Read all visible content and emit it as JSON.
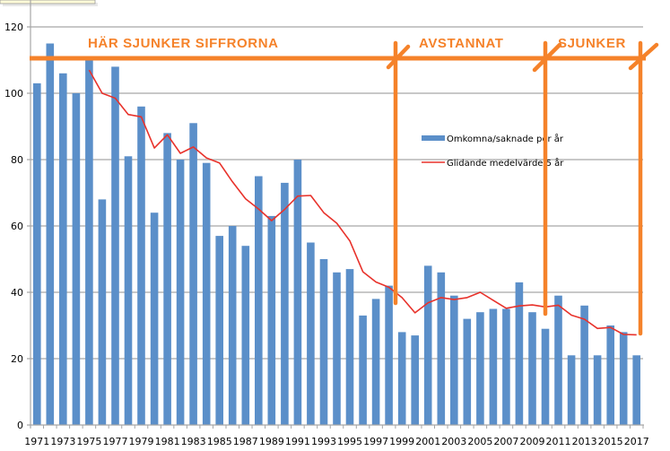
{
  "chart_data": {
    "type": "bar",
    "title": "",
    "xlabel": "",
    "ylabel": "",
    "ylim": [
      0,
      120
    ],
    "yticks": [
      0,
      20,
      40,
      60,
      80,
      100,
      120
    ],
    "grid": true,
    "legend_position": "inside-right",
    "categories": [
      1971,
      1972,
      1973,
      1974,
      1975,
      1976,
      1977,
      1978,
      1979,
      1980,
      1981,
      1982,
      1983,
      1984,
      1985,
      1986,
      1987,
      1988,
      1989,
      1990,
      1991,
      1992,
      1993,
      1994,
      1995,
      1996,
      1997,
      1998,
      1999,
      2000,
      2001,
      2002,
      2003,
      2004,
      2005,
      2006,
      2007,
      2008,
      2009,
      2010,
      2011,
      2012,
      2013,
      2014,
      2015,
      2016,
      2017
    ],
    "xtick_labels": [
      "1971",
      "1973",
      "1975",
      "1977",
      "1979",
      "1981",
      "1983",
      "1985",
      "1987",
      "1989",
      "1991",
      "1993",
      "1995",
      "1997",
      "1999",
      "2001",
      "2003",
      "2005",
      "2007",
      "2009",
      "2011",
      "2013",
      "2015",
      "2017"
    ],
    "series": [
      {
        "name": "Omkomna/saknade per år",
        "type": "bar",
        "color": "#5b8fc9",
        "values": [
          103,
          115,
          106,
          100,
          110,
          68,
          108,
          81,
          96,
          64,
          88,
          80,
          91,
          79,
          57,
          60,
          54,
          75,
          63,
          73,
          80,
          55,
          50,
          46,
          47,
          33,
          38,
          42,
          28,
          27,
          48,
          46,
          39,
          32,
          34,
          35,
          35,
          43,
          34,
          29,
          39,
          21,
          36,
          21,
          30,
          28,
          21
        ]
      },
      {
        "name": "Glidande medelvärde 5 år",
        "type": "line",
        "color": "#e8322b",
        "values": [
          null,
          null,
          null,
          null,
          107,
          100,
          98.5,
          93.6,
          92.9,
          83.5,
          87.5,
          81.9,
          83.8,
          80.5,
          79,
          73.3,
          68.2,
          65.1,
          61.6,
          65,
          69,
          69.2,
          64,
          60.8,
          55.5,
          46.2,
          43.1,
          41.5,
          38.4,
          33.8,
          36.8,
          38.4,
          37.8,
          38.4,
          40,
          37.6,
          35.2,
          35.9,
          36.2,
          35.6,
          36.1,
          33.1,
          31.9,
          29.1,
          29.4,
          27.3,
          27.2
        ]
      }
    ],
    "annotations": [
      {
        "text": "HÄR SJUNKER SIFFRORNA",
        "from": 1971,
        "to": 1999,
        "color": "#f5822a"
      },
      {
        "text": "AVSTANNAT",
        "from": 1999,
        "to": 2010,
        "color": "#f5822a"
      },
      {
        "text": "SJUNKER",
        "from": 2010,
        "to": 2017,
        "color": "#f5822a"
      }
    ]
  },
  "legend": {
    "items": [
      {
        "label": "Omkomna/saknade per år",
        "color": "#5b8fc9",
        "swatch": "bar"
      },
      {
        "label": "Glidande medelvärde 5 år",
        "color": "#e8322b",
        "swatch": "line"
      }
    ]
  },
  "annotations": {
    "phase1": "HÄR SJUNKER SIFFRORNA",
    "phase2": "AVSTANNAT",
    "phase3": "SJUNKER",
    "color": "#f5822a"
  },
  "colors": {
    "bar": "#5b8fc9",
    "line": "#e8322b",
    "annotation": "#f5822a",
    "grid": "#c8c8c8",
    "tooltip_bg": "#fffbd8"
  }
}
